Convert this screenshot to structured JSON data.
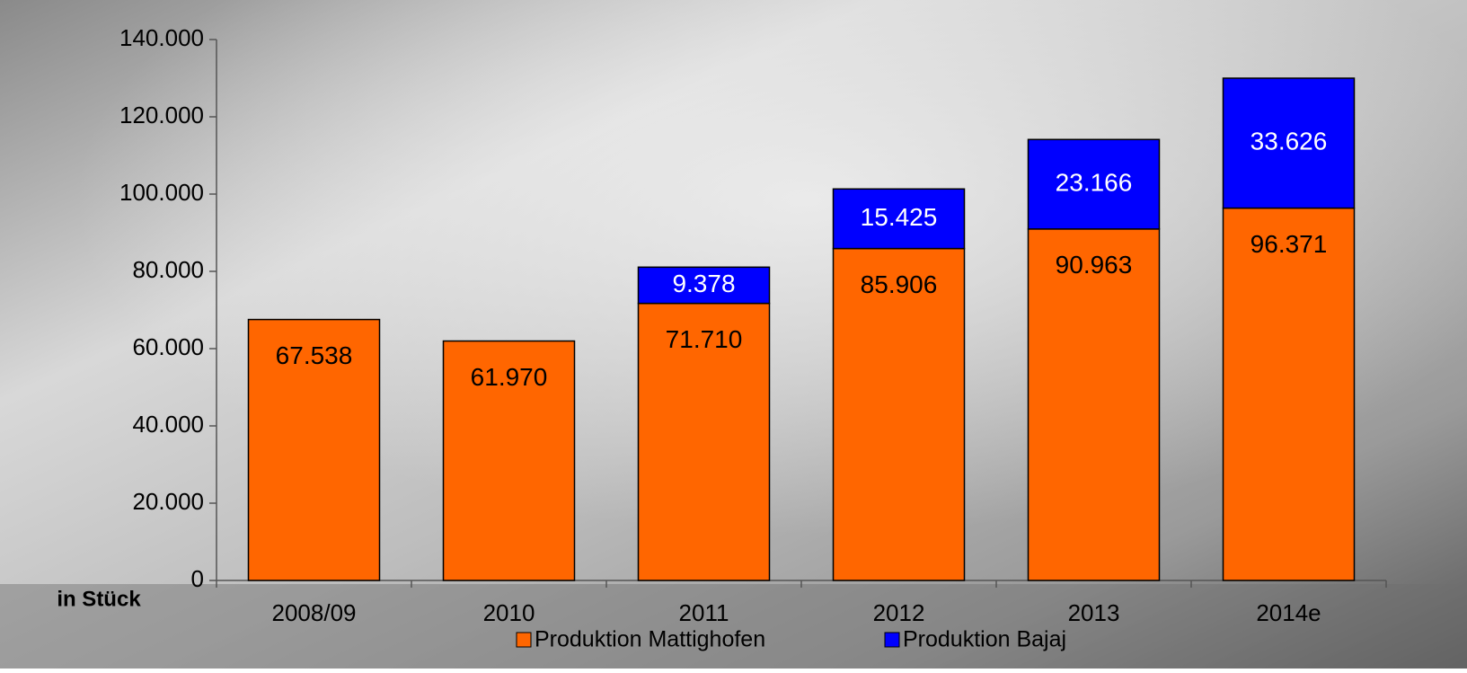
{
  "chart_data": {
    "type": "stacked_bar",
    "y_axis_label": "in Stück",
    "categories": [
      "2008/09",
      "2010",
      "2011",
      "2012",
      "2013",
      "2014e"
    ],
    "series": [
      {
        "name": "Produktion Mattighofen",
        "color": "#ff6600",
        "label_color": "#000000",
        "values": [
          67538,
          61970,
          71710,
          85906,
          90963,
          96371
        ],
        "value_labels": [
          "67.538",
          "61.970",
          "71.710",
          "85.906",
          "90.963",
          "96.371"
        ]
      },
      {
        "name": "Produktion Bajaj",
        "color": "#0000ff",
        "label_color": "#ffffff",
        "values": [
          null,
          null,
          9378,
          15425,
          23166,
          33626
        ],
        "value_labels": [
          null,
          null,
          "9.378",
          "15.425",
          "23.166",
          "33.626"
        ]
      }
    ],
    "ylim": [
      0,
      140000
    ],
    "yticks": [
      0,
      {
        "value": 20000,
        "label": "20.000"
      },
      {
        "value": 40000,
        "label": "40.000"
      },
      {
        "value": 60000,
        "label": "60.000"
      },
      {
        "value": 80000,
        "label": "80.000"
      },
      {
        "value": 100000,
        "label": "100.000"
      },
      {
        "value": 120000,
        "label": "120.000"
      },
      {
        "value": 140000,
        "label": "140.000"
      }
    ]
  }
}
